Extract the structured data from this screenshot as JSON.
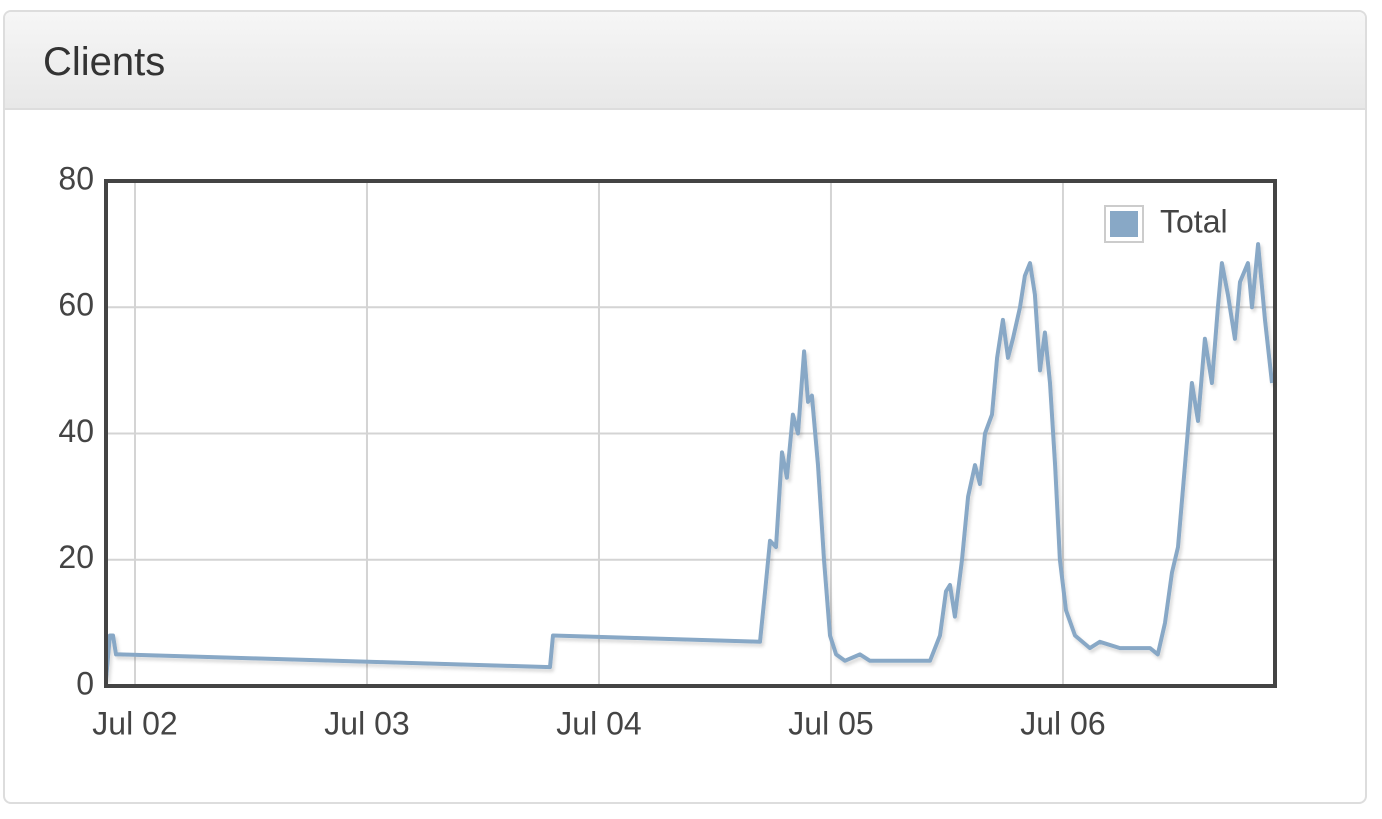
{
  "header": {
    "title": "Clients"
  },
  "chart_data": {
    "type": "line",
    "x": [
      -0.125,
      -0.108,
      -0.095,
      -0.082,
      -0.065,
      1.789,
      1.802,
      2.694,
      2.716,
      2.737,
      2.763,
      2.789,
      2.81,
      2.836,
      2.858,
      2.884,
      2.901,
      2.918,
      2.944,
      2.97,
      2.996,
      3.022,
      3.06,
      3.125,
      3.168,
      3.297,
      3.427,
      3.47,
      3.496,
      3.513,
      3.534,
      3.565,
      3.591,
      3.621,
      3.642,
      3.664,
      3.694,
      3.716,
      3.741,
      3.763,
      3.784,
      3.815,
      3.836,
      3.858,
      3.879,
      3.901,
      3.922,
      3.944,
      3.966,
      3.987,
      4.013,
      4.052,
      4.116,
      4.159,
      4.246,
      4.375,
      4.409,
      4.44,
      4.47,
      4.496,
      4.526,
      4.556,
      4.582,
      4.612,
      4.642,
      4.668,
      4.685,
      4.711,
      4.741,
      4.763,
      4.797,
      4.815,
      4.841,
      4.871,
      4.901
    ],
    "series": [
      {
        "name": "Total",
        "color": "#88a8c6",
        "values": [
          1,
          8,
          8,
          5,
          5,
          3,
          8,
          7,
          15,
          23,
          22,
          37,
          33,
          43,
          40,
          53,
          45,
          46,
          35,
          20,
          8,
          5,
          4,
          5,
          4,
          4,
          4,
          8,
          15,
          16,
          11,
          20,
          30,
          35,
          32,
          40,
          43,
          52,
          58,
          52,
          55,
          60,
          65,
          67,
          62,
          50,
          56,
          48,
          35,
          20,
          12,
          8,
          6,
          7,
          6,
          6,
          5,
          10,
          18,
          22,
          35,
          48,
          42,
          55,
          48,
          60,
          67,
          62,
          55,
          64,
          67,
          60,
          70,
          58,
          48
        ]
      }
    ],
    "xlim": [
      -0.125,
      4.914
    ],
    "xticks": [
      {
        "value": 0,
        "label": "Jul 02"
      },
      {
        "value": 1,
        "label": "Jul 03"
      },
      {
        "value": 2,
        "label": "Jul 04"
      },
      {
        "value": 3,
        "label": "Jul 05"
      },
      {
        "value": 4,
        "label": "Jul 06"
      }
    ],
    "ylim": [
      0,
      80
    ],
    "yticks": [
      0,
      20,
      40,
      60,
      80
    ],
    "grid": true,
    "legend": "upper right"
  }
}
